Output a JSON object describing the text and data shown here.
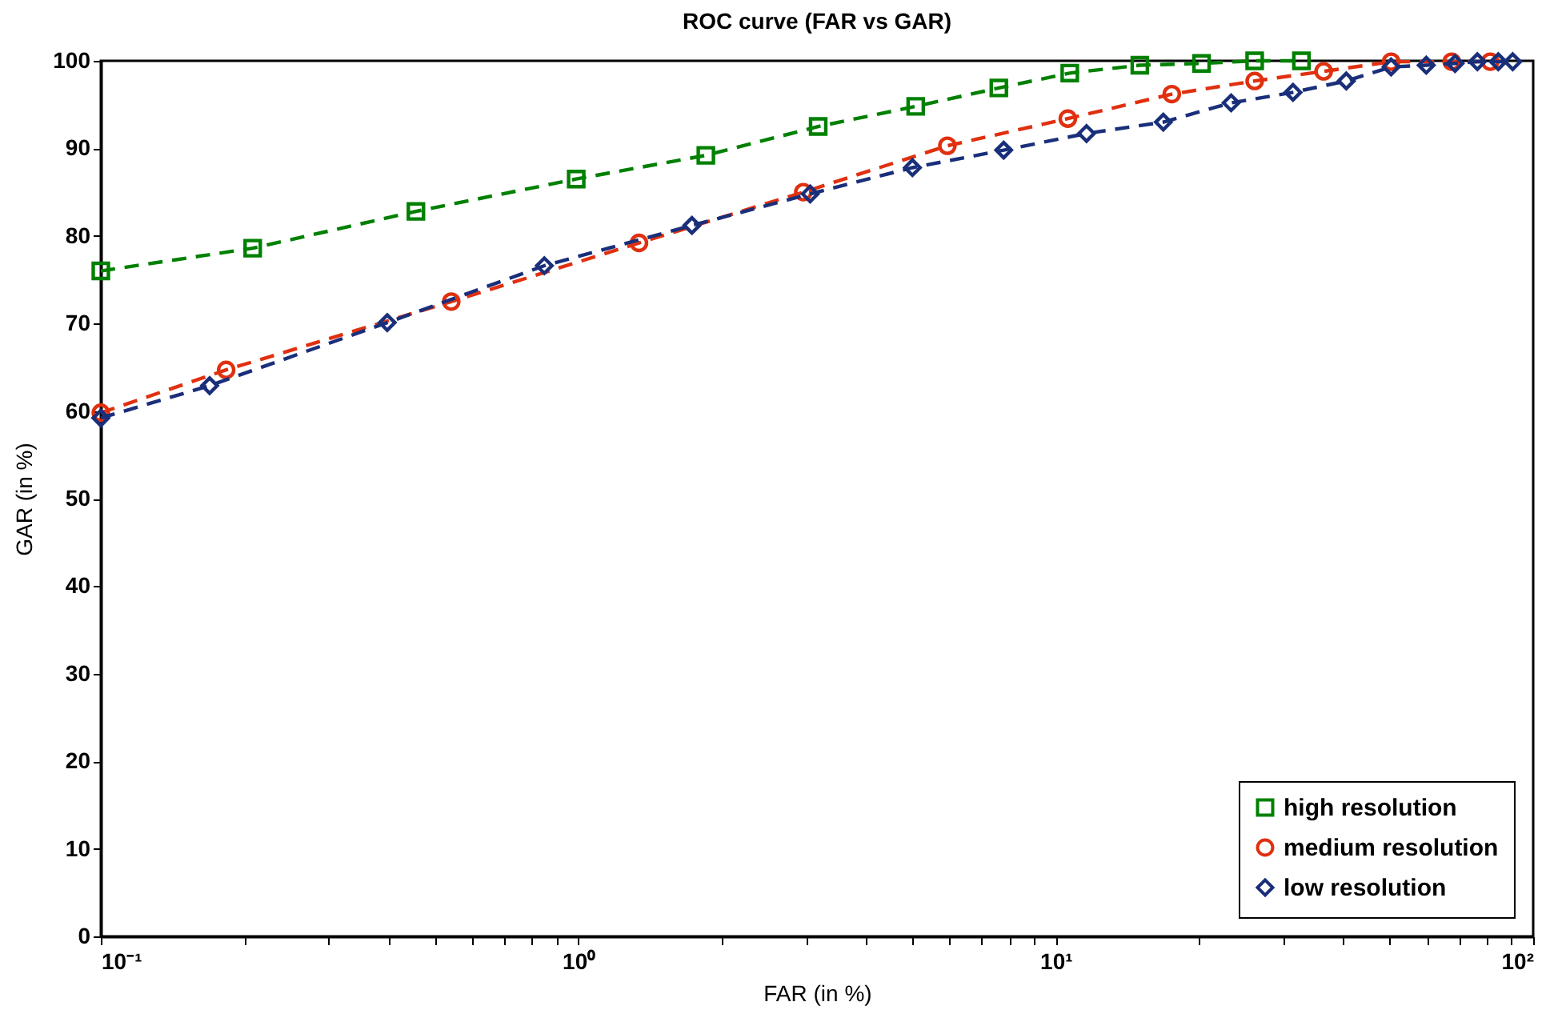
{
  "chart_data": {
    "type": "line",
    "title": "ROC curve (FAR vs GAR)",
    "xlabel": "FAR (in %)",
    "ylabel": "GAR (in %)",
    "log": "x",
    "xlim": [
      0.1,
      100
    ],
    "ylim": [
      0,
      100
    ],
    "xticks": [
      {
        "value": 0.1,
        "label": "10⁻¹"
      },
      {
        "value": 0.2,
        "label": null
      },
      {
        "value": 0.3,
        "label": null
      },
      {
        "value": 0.4,
        "label": null
      },
      {
        "value": 0.5,
        "label": null
      },
      {
        "value": 0.6,
        "label": null
      },
      {
        "value": 0.7,
        "label": null
      },
      {
        "value": 0.8,
        "label": null
      },
      {
        "value": 0.9,
        "label": null
      },
      {
        "value": 1,
        "label": "10⁰"
      },
      {
        "value": 2,
        "label": null
      },
      {
        "value": 3,
        "label": null
      },
      {
        "value": 4,
        "label": null
      },
      {
        "value": 5,
        "label": null
      },
      {
        "value": 6,
        "label": null
      },
      {
        "value": 7,
        "label": null
      },
      {
        "value": 8,
        "label": null
      },
      {
        "value": 9,
        "label": null
      },
      {
        "value": 10,
        "label": "10¹"
      },
      {
        "value": 20,
        "label": null
      },
      {
        "value": 30,
        "label": null
      },
      {
        "value": 40,
        "label": null
      },
      {
        "value": 50,
        "label": null
      },
      {
        "value": 60,
        "label": null
      },
      {
        "value": 70,
        "label": null
      },
      {
        "value": 80,
        "label": null
      },
      {
        "value": 90,
        "label": null
      },
      {
        "value": 100,
        "label": "10²"
      }
    ],
    "yticks": [
      0,
      10,
      20,
      30,
      40,
      50,
      60,
      70,
      80,
      90,
      100
    ],
    "grid": false,
    "legend": "bottom right",
    "line_style": "dashed",
    "series": [
      {
        "name": "high resolution",
        "color": "#008000",
        "marker": "square",
        "x": [
          0.1,
          0.208,
          0.457,
          0.99,
          1.85,
          3.18,
          5.09,
          7.6,
          10.7,
          15,
          20.2,
          26.1,
          32.7
        ],
        "values": [
          76,
          78.6,
          82.8,
          86.5,
          89.2,
          92.5,
          94.8,
          96.9,
          98.6,
          99.5,
          99.7,
          100,
          100
        ]
      },
      {
        "name": "medium resolution",
        "color": "#e0300f",
        "marker": "circle",
        "x": [
          0.1,
          0.183,
          0.542,
          1.34,
          2.96,
          5.93,
          10.6,
          17.5,
          26.1,
          36.4,
          50.4,
          67.5,
          81.3
        ],
        "values": [
          59.8,
          64.7,
          72.5,
          79.2,
          85,
          90.3,
          93.4,
          96.2,
          97.7,
          98.8,
          99.9,
          99.9,
          99.9
        ]
      },
      {
        "name": "low resolution",
        "color": "#1a2f7a",
        "marker": "diamond",
        "x": [
          0.1,
          0.169,
          0.398,
          0.849,
          1.73,
          3.06,
          5.01,
          7.78,
          11.6,
          16.8,
          23.3,
          31.4,
          40.6,
          50.4,
          59.7,
          68.6,
          76.4,
          84.5,
          90.6
        ],
        "values": [
          59.2,
          62.9,
          70.1,
          76.6,
          81.2,
          84.8,
          87.8,
          89.8,
          91.7,
          93,
          95.2,
          96.4,
          97.7,
          99.3,
          99.5,
          99.7,
          99.9,
          99.9,
          99.9
        ]
      }
    ]
  }
}
